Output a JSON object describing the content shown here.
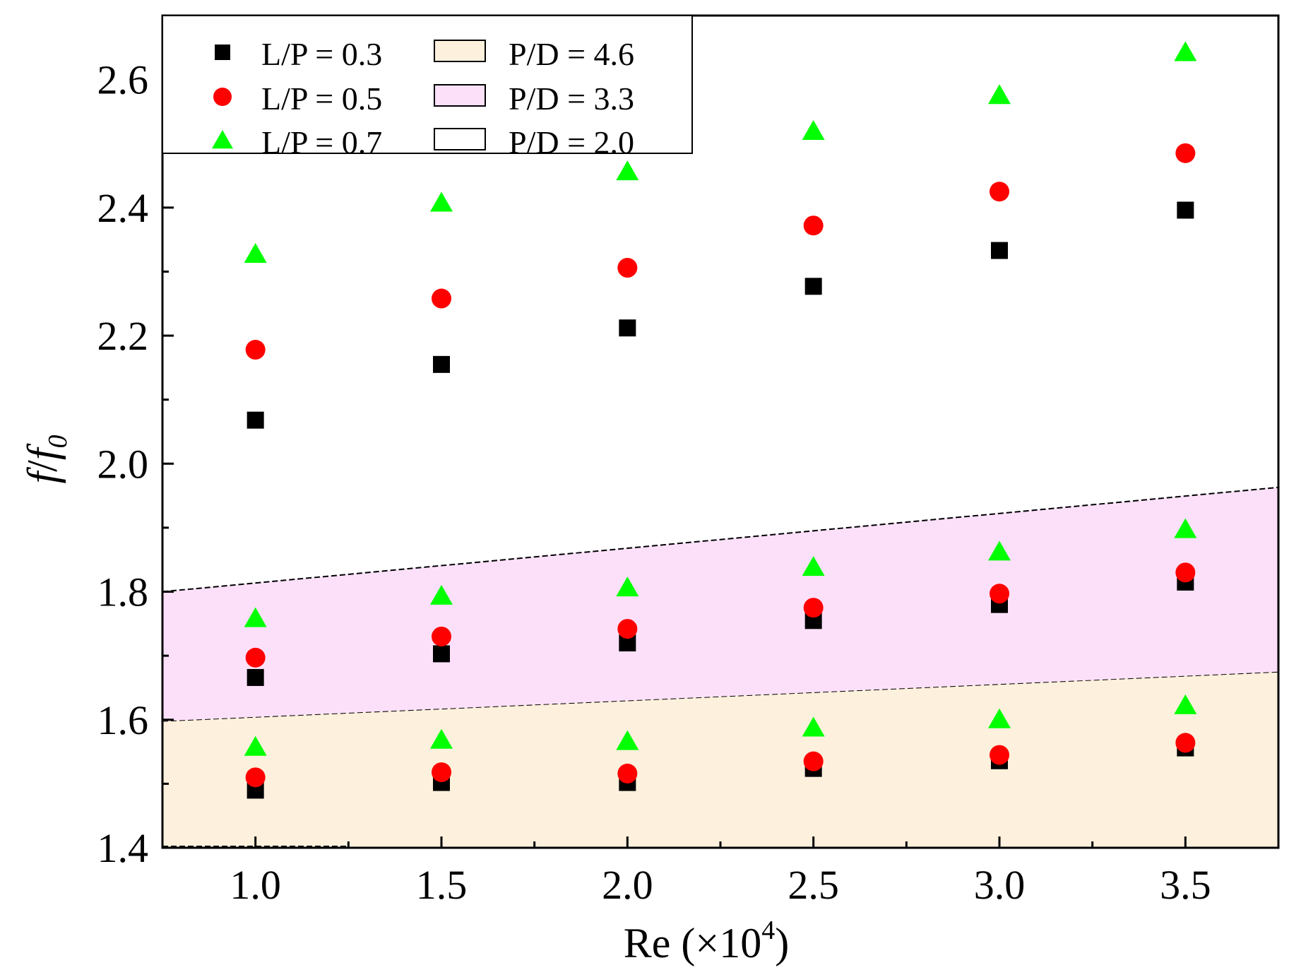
{
  "chart_data": {
    "type": "scatter",
    "xlabel": "Re (×10",
    "xlabel_sup": "4",
    "xlabel_close": ")",
    "ylabel_f": "f",
    "ylabel_slash": "/",
    "ylabel_f0": "f",
    "ylabel_sub": "0",
    "xlim": [
      0.75,
      3.75
    ],
    "ylim": [
      1.4,
      2.7
    ],
    "x_ticks": [
      1.0,
      1.5,
      2.0,
      2.5,
      3.0,
      3.5
    ],
    "x_tick_labels": [
      "1.0",
      "1.5",
      "2.0",
      "2.5",
      "3.0",
      "3.5"
    ],
    "x_minor_ticks": [
      1.25,
      1.75,
      2.25,
      2.75,
      3.25
    ],
    "y_ticks": [
      1.4,
      1.6,
      1.8,
      2.0,
      2.2,
      2.4,
      2.6
    ],
    "y_tick_labels": [
      "1.4",
      "1.6",
      "1.8",
      "2.0",
      "2.2",
      "2.4",
      "2.6"
    ],
    "y_minor_ticks": [
      1.5,
      1.7,
      1.9,
      2.1,
      2.3,
      2.5
    ],
    "x": [
      1.0,
      1.5,
      2.0,
      2.5,
      3.0,
      3.5
    ],
    "series": [
      {
        "name": "L/P = 0.3",
        "group": "P/D = 4.6",
        "marker": "square",
        "color": "#000000",
        "values": [
          1.49,
          1.502,
          1.502,
          1.524,
          1.536,
          1.556
        ]
      },
      {
        "name": "L/P = 0.5",
        "group": "P/D = 4.6",
        "marker": "circle",
        "color": "#ff0000",
        "values": [
          1.51,
          1.518,
          1.516,
          1.535,
          1.545,
          1.564
        ]
      },
      {
        "name": "L/P = 0.7",
        "group": "P/D = 4.6",
        "marker": "triangle",
        "color": "#00ff00",
        "values": [
          1.557,
          1.568,
          1.566,
          1.587,
          1.6,
          1.622
        ]
      },
      {
        "name": "L/P = 0.3",
        "group": "P/D = 3.3",
        "marker": "square",
        "color": "#000000",
        "values": [
          1.666,
          1.703,
          1.72,
          1.755,
          1.78,
          1.815
        ]
      },
      {
        "name": "L/P = 0.5",
        "group": "P/D = 3.3",
        "marker": "circle",
        "color": "#ff0000",
        "values": [
          1.697,
          1.73,
          1.742,
          1.775,
          1.797,
          1.83
        ]
      },
      {
        "name": "L/P = 0.7",
        "group": "P/D = 3.3",
        "marker": "triangle",
        "color": "#00ff00",
        "values": [
          1.758,
          1.793,
          1.806,
          1.838,
          1.862,
          1.897
        ]
      },
      {
        "name": "L/P = 0.3",
        "group": "P/D = 2.0",
        "marker": "square",
        "color": "#000000",
        "values": [
          2.068,
          2.155,
          2.212,
          2.277,
          2.333,
          2.396
        ]
      },
      {
        "name": "L/P = 0.5",
        "group": "P/D = 2.0",
        "marker": "circle",
        "color": "#ff0000",
        "values": [
          2.178,
          2.258,
          2.306,
          2.372,
          2.425,
          2.485
        ]
      },
      {
        "name": "L/P = 0.7",
        "group": "P/D = 2.0",
        "marker": "triangle",
        "color": "#00ff00",
        "values": [
          2.327,
          2.407,
          2.456,
          2.519,
          2.575,
          2.642
        ]
      }
    ],
    "bands": [
      {
        "name": "P/D = 4.6",
        "color": "#fdf0dc",
        "x": [
          0.75,
          3.75
        ],
        "lower": [
          1.4,
          1.4
        ],
        "upper": [
          1.598,
          1.675
        ]
      },
      {
        "name": "P/D = 3.3",
        "color": "#fce0fa",
        "x": [
          0.75,
          3.75
        ],
        "lower": [
          1.598,
          1.675
        ],
        "upper": [
          1.8,
          1.963
        ]
      }
    ],
    "legend": {
      "position": "top-left",
      "markers": [
        {
          "label": "L/P = 0.3",
          "marker": "square",
          "color": "#000000"
        },
        {
          "label": "L/P = 0.5",
          "marker": "circle",
          "color": "#ff0000"
        },
        {
          "label": "L/P = 0.7",
          "marker": "triangle",
          "color": "#00ff00"
        }
      ],
      "patches": [
        {
          "label": "P/D = 4.6",
          "color": "#fdf0dc"
        },
        {
          "label": "P/D = 3.3",
          "color": "#fce0fa"
        },
        {
          "label": "P/D = 2.0",
          "color": "#ffffff"
        }
      ]
    },
    "grid": false
  }
}
